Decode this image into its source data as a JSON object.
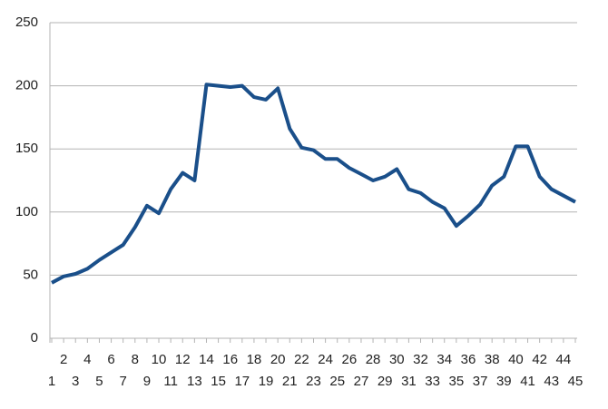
{
  "chart_data": {
    "type": "line",
    "categories": [
      1,
      2,
      3,
      4,
      5,
      6,
      7,
      8,
      9,
      10,
      11,
      12,
      13,
      14,
      15,
      16,
      17,
      18,
      19,
      20,
      21,
      22,
      23,
      24,
      25,
      26,
      27,
      28,
      29,
      30,
      31,
      32,
      33,
      34,
      35,
      36,
      37,
      38,
      39,
      40,
      41,
      42,
      43,
      44,
      45
    ],
    "series": [
      {
        "color": "#1a4f8a",
        "values": [
          44,
          49,
          51,
          55,
          62,
          68,
          74,
          88,
          105,
          99,
          118,
          131,
          125,
          201,
          200,
          199,
          200,
          191,
          189,
          198,
          166,
          151,
          149,
          142,
          142,
          135,
          130,
          125,
          128,
          134,
          118,
          115,
          108,
          103,
          89,
          97,
          106,
          121,
          128,
          152,
          152,
          128,
          118,
          113,
          108
        ]
      }
    ],
    "ylim": [
      0,
      250
    ],
    "yticks": [
      0,
      50,
      100,
      150,
      200,
      250
    ],
    "grid": true
  }
}
